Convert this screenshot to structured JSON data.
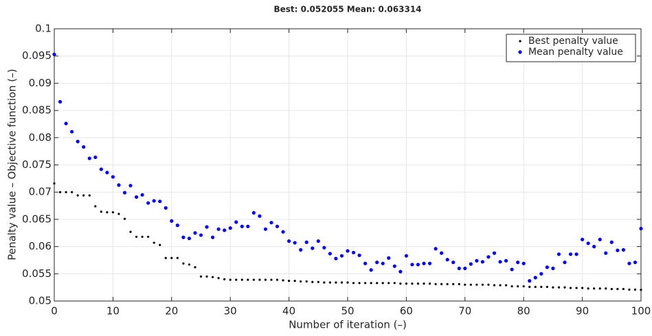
{
  "chart_data": {
    "type": "scatter",
    "title": "Best: 0.052055 Mean: 0.063314",
    "xlabel": "Number of iteration (–)",
    "ylabel": "Penalty value – Objective function (–)",
    "x": [
      0,
      1,
      2,
      3,
      4,
      5,
      6,
      7,
      8,
      9,
      10,
      11,
      12,
      13,
      14,
      15,
      16,
      17,
      18,
      19,
      20,
      21,
      22,
      23,
      24,
      25,
      26,
      27,
      28,
      29,
      30,
      31,
      32,
      33,
      34,
      35,
      36,
      37,
      38,
      39,
      40,
      41,
      42,
      43,
      44,
      45,
      46,
      47,
      48,
      49,
      50,
      51,
      52,
      53,
      54,
      55,
      56,
      57,
      58,
      59,
      60,
      61,
      62,
      63,
      64,
      65,
      66,
      67,
      68,
      69,
      70,
      71,
      72,
      73,
      74,
      75,
      76,
      77,
      78,
      79,
      80,
      81,
      82,
      83,
      84,
      85,
      86,
      87,
      88,
      89,
      90,
      91,
      92,
      93,
      94,
      95,
      96,
      97,
      98,
      99,
      100
    ],
    "series": [
      {
        "name": "Best penalty value",
        "color": "#000000",
        "marker_size": 1.6,
        "values": [
          0.0716,
          0.07,
          0.07,
          0.07,
          0.0694,
          0.0694,
          0.0694,
          0.0674,
          0.0664,
          0.0663,
          0.0663,
          0.066,
          0.0651,
          0.0627,
          0.0618,
          0.0618,
          0.0618,
          0.0607,
          0.0603,
          0.0579,
          0.0579,
          0.0579,
          0.0569,
          0.0567,
          0.0562,
          0.0545,
          0.0545,
          0.0544,
          0.0542,
          0.054,
          0.0539,
          0.0539,
          0.0539,
          0.0539,
          0.0539,
          0.0539,
          0.0539,
          0.0539,
          0.0539,
          0.0538,
          0.0537,
          0.0537,
          0.0536,
          0.0536,
          0.0535,
          0.0535,
          0.0534,
          0.0534,
          0.0534,
          0.0534,
          0.0534,
          0.0533,
          0.0533,
          0.0533,
          0.0533,
          0.0533,
          0.0533,
          0.0533,
          0.0533,
          0.0532,
          0.0532,
          0.0532,
          0.0532,
          0.0532,
          0.0532,
          0.0531,
          0.0531,
          0.0531,
          0.0531,
          0.0531,
          0.053,
          0.053,
          0.053,
          0.053,
          0.053,
          0.0529,
          0.0529,
          0.0529,
          0.0527,
          0.0527,
          0.0527,
          0.0526,
          0.0526,
          0.0526,
          0.0526,
          0.0525,
          0.0525,
          0.0525,
          0.0524,
          0.0524,
          0.0524,
          0.0523,
          0.0523,
          0.0523,
          0.0523,
          0.0522,
          0.0522,
          0.0522,
          0.0521,
          0.0521,
          0.052055
        ]
      },
      {
        "name": "Mean penalty value",
        "color": "#0000ff",
        "marker_size": 2.6,
        "values": [
          0.0953,
          0.0866,
          0.0826,
          0.0811,
          0.0793,
          0.0783,
          0.0762,
          0.0764,
          0.0742,
          0.0736,
          0.0728,
          0.0713,
          0.0699,
          0.0712,
          0.0691,
          0.0695,
          0.068,
          0.0684,
          0.0683,
          0.0671,
          0.0647,
          0.0639,
          0.0617,
          0.0615,
          0.0625,
          0.0621,
          0.0636,
          0.0617,
          0.0632,
          0.063,
          0.0634,
          0.0645,
          0.0637,
          0.0637,
          0.0662,
          0.0656,
          0.0632,
          0.0644,
          0.0637,
          0.0627,
          0.061,
          0.0607,
          0.0594,
          0.0608,
          0.0597,
          0.061,
          0.0598,
          0.0587,
          0.0578,
          0.0583,
          0.0592,
          0.0589,
          0.0584,
          0.0569,
          0.0557,
          0.0571,
          0.0569,
          0.0579,
          0.0564,
          0.0554,
          0.0583,
          0.0567,
          0.0567,
          0.0569,
          0.0569,
          0.0596,
          0.0588,
          0.0576,
          0.0571,
          0.056,
          0.056,
          0.0568,
          0.0574,
          0.0572,
          0.0581,
          0.0588,
          0.0572,
          0.0574,
          0.0558,
          0.0571,
          0.0569,
          0.0537,
          0.0543,
          0.055,
          0.0562,
          0.056,
          0.0586,
          0.0571,
          0.0586,
          0.0586,
          0.0613,
          0.0606,
          0.06,
          0.0613,
          0.0588,
          0.0608,
          0.0593,
          0.0594,
          0.0569,
          0.0571,
          0.0633
        ]
      }
    ],
    "xlim": [
      0,
      100
    ],
    "xticks": [
      0,
      10,
      20,
      30,
      40,
      50,
      60,
      70,
      80,
      90,
      100
    ],
    "ylim": [
      0.05,
      0.1
    ],
    "yticks": [
      0.05,
      0.055,
      0.06,
      0.065,
      0.07,
      0.075,
      0.08,
      0.085,
      0.09,
      0.095,
      0.1
    ],
    "grid": true,
    "legend": "upper right"
  }
}
